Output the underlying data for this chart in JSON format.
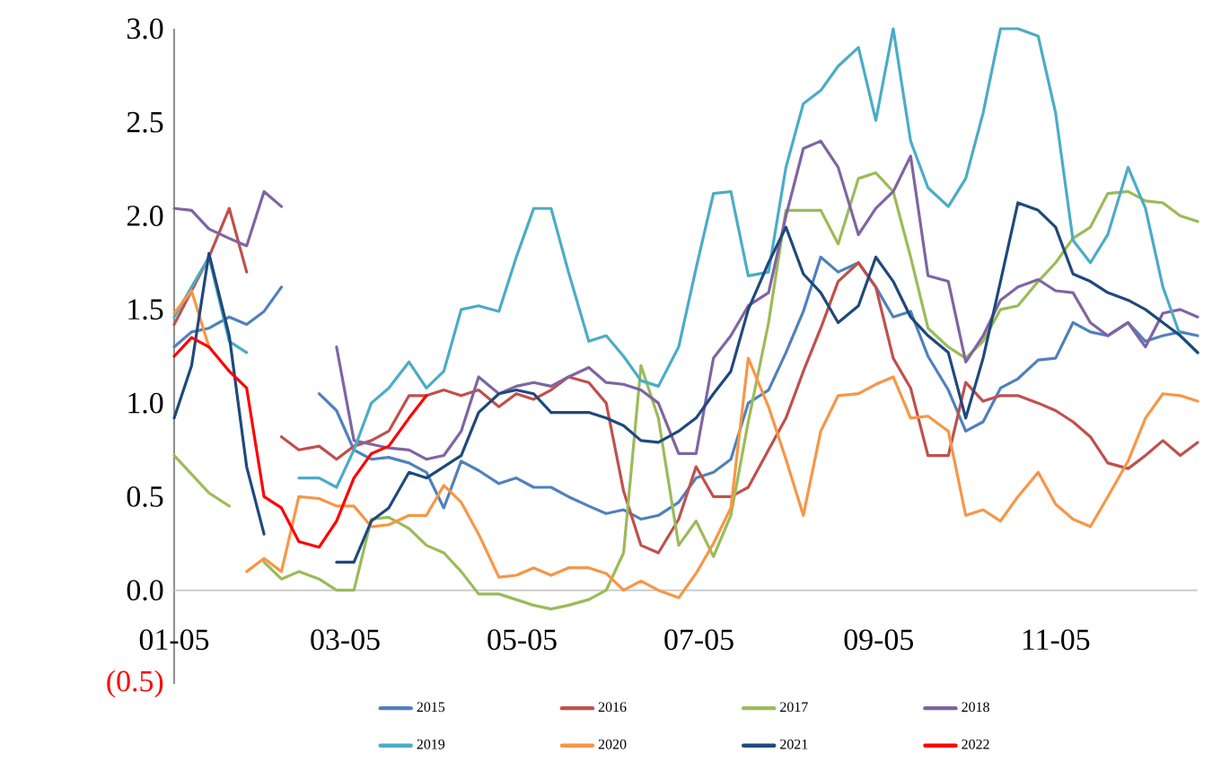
{
  "chart_data": {
    "type": "line",
    "x": [
      "--01-05",
      "--01-11",
      "--01-17",
      "--01-24",
      "--01-30",
      "--02-05",
      "--02-11",
      "--02-17",
      "--02-24",
      "--03-02",
      "--03-08",
      "--03-14",
      "--03-20",
      "--03-27",
      "--04-02",
      "--04-08",
      "--04-14",
      "--04-20",
      "--04-27",
      "--05-03",
      "--05-09",
      "--05-15",
      "--05-21",
      "--05-28",
      "--06-03",
      "--06-09",
      "--06-15",
      "--06-21",
      "--06-28",
      "--07-04",
      "--07-10",
      "--07-16",
      "--07-22",
      "--07-29",
      "--08-04",
      "--08-10",
      "--08-16",
      "--08-22",
      "--08-29",
      "--09-04",
      "--09-10",
      "--09-16",
      "--09-22",
      "--09-29",
      "--10-05",
      "--10-11",
      "--10-17",
      "--10-23",
      "--10-30",
      "--11-05",
      "--11-11",
      "--11-17",
      "--11-23",
      "--11-30",
      "--12-06",
      "--12-12",
      "--12-18",
      "--12-24"
    ],
    "series": [
      {
        "name": "2015",
        "color": "#4f81bd",
        "values": [
          1.3,
          1.38,
          1.4,
          1.46,
          1.42,
          1.49,
          1.62,
          null,
          1.05,
          0.96,
          0.75,
          0.7,
          0.71,
          0.68,
          0.63,
          0.44,
          0.69,
          0.64,
          0.57,
          0.6,
          0.55,
          0.55,
          0.5,
          0.45,
          0.41,
          0.43,
          0.38,
          0.4,
          0.47,
          0.6,
          0.63,
          0.7,
          1.0,
          1.07,
          1.27,
          1.49,
          1.78,
          1.7,
          1.75,
          1.62,
          1.46,
          1.49,
          1.25,
          1.07,
          0.85,
          0.9,
          1.08,
          1.13,
          1.23,
          1.24,
          1.43,
          1.38,
          1.36,
          1.43,
          1.33,
          1.36,
          1.38,
          1.36
        ]
      },
      {
        "name": "2016",
        "color": "#c0504d",
        "values": [
          1.42,
          1.6,
          1.78,
          2.04,
          1.7,
          null,
          0.82,
          0.75,
          0.77,
          0.7,
          0.77,
          0.8,
          0.85,
          1.04,
          1.04,
          1.07,
          1.04,
          1.07,
          0.98,
          1.05,
          1.02,
          1.07,
          1.14,
          1.11,
          1.0,
          0.53,
          0.24,
          0.2,
          0.38,
          0.66,
          0.5,
          0.5,
          0.55,
          0.75,
          0.92,
          1.17,
          1.4,
          1.65,
          1.75,
          1.62,
          1.24,
          1.08,
          0.72,
          0.72,
          1.11,
          1.01,
          1.04,
          1.04,
          1.0,
          0.96,
          0.9,
          0.82,
          0.68,
          0.65,
          0.72,
          0.8,
          0.72,
          0.79
        ]
      },
      {
        "name": "2017",
        "color": "#9bbb59",
        "values": [
          0.72,
          0.62,
          0.52,
          0.45,
          null,
          0.15,
          0.06,
          0.1,
          0.06,
          0.0,
          0.0,
          0.38,
          0.39,
          0.33,
          0.24,
          0.2,
          0.1,
          -0.02,
          -0.02,
          -0.05,
          -0.08,
          -0.1,
          -0.08,
          -0.05,
          0.0,
          0.2,
          1.2,
          0.92,
          0.24,
          0.37,
          0.18,
          0.4,
          0.9,
          1.43,
          2.03,
          2.03,
          2.03,
          1.85,
          2.2,
          2.23,
          2.13,
          1.78,
          1.4,
          1.3,
          1.24,
          1.33,
          1.5,
          1.52,
          1.65,
          1.75,
          1.88,
          1.94,
          2.12,
          2.13,
          2.08,
          2.07,
          2.0,
          1.97
        ]
      },
      {
        "name": "2018",
        "color": "#8064a2",
        "values": [
          2.04,
          2.03,
          1.93,
          1.88,
          1.84,
          2.13,
          2.05,
          null,
          null,
          1.3,
          0.8,
          0.78,
          0.76,
          0.75,
          0.7,
          0.72,
          0.85,
          1.14,
          1.05,
          1.09,
          1.11,
          1.09,
          1.14,
          1.19,
          1.11,
          1.1,
          1.07,
          1.0,
          0.73,
          0.73,
          1.24,
          1.36,
          1.52,
          1.59,
          2.0,
          2.36,
          2.4,
          2.26,
          1.9,
          2.04,
          2.13,
          2.32,
          1.68,
          1.65,
          1.22,
          1.36,
          1.55,
          1.62,
          1.66,
          1.6,
          1.59,
          1.43,
          1.36,
          1.43,
          1.3,
          1.48,
          1.5,
          1.46
        ]
      },
      {
        "name": "2019",
        "color": "#4bacc6",
        "values": [
          1.46,
          1.62,
          1.78,
          1.33,
          1.27,
          null,
          null,
          0.6,
          0.6,
          0.55,
          0.75,
          1.0,
          1.08,
          1.22,
          1.08,
          1.17,
          1.5,
          1.52,
          1.49,
          1.78,
          2.04,
          2.04,
          1.7,
          1.33,
          1.36,
          1.25,
          1.12,
          1.09,
          1.3,
          1.72,
          2.12,
          2.13,
          1.68,
          1.7,
          2.26,
          2.6,
          2.67,
          2.8,
          2.9,
          2.51,
          3.0,
          2.4,
          2.15,
          2.05,
          2.2,
          2.55,
          3.0,
          3.0,
          2.96,
          2.55,
          1.87,
          1.75,
          1.9,
          2.26,
          2.04,
          1.62,
          1.36,
          1.27
        ]
      },
      {
        "name": "2020",
        "color": "#f79646",
        "values": [
          1.48,
          1.6,
          1.3,
          null,
          0.1,
          0.17,
          0.1,
          0.5,
          0.49,
          0.45,
          0.45,
          0.34,
          0.35,
          0.4,
          0.4,
          0.56,
          0.47,
          0.3,
          0.07,
          0.08,
          0.12,
          0.08,
          0.12,
          0.12,
          0.09,
          0.0,
          0.05,
          0.0,
          -0.04,
          0.09,
          0.25,
          0.44,
          1.24,
          0.98,
          0.7,
          0.4,
          0.85,
          1.04,
          1.05,
          1.1,
          1.14,
          0.92,
          0.93,
          0.85,
          0.4,
          0.43,
          0.37,
          0.5,
          0.63,
          0.46,
          0.38,
          0.34,
          0.5,
          0.69,
          0.92,
          1.05,
          1.04,
          1.01
        ]
      },
      {
        "name": "2021",
        "color": "#1f497d",
        "values": [
          0.92,
          1.2,
          1.8,
          1.36,
          0.66,
          0.3,
          null,
          null,
          null,
          0.15,
          0.15,
          0.37,
          0.44,
          0.63,
          0.6,
          0.66,
          0.72,
          0.95,
          1.05,
          1.07,
          1.05,
          0.95,
          0.95,
          0.95,
          0.92,
          0.88,
          0.8,
          0.79,
          0.85,
          0.92,
          1.05,
          1.17,
          1.5,
          1.75,
          1.94,
          1.69,
          1.59,
          1.43,
          1.52,
          1.78,
          1.65,
          1.46,
          1.36,
          1.27,
          0.92,
          1.24,
          1.65,
          2.07,
          2.03,
          1.94,
          1.69,
          1.65,
          1.59,
          1.55,
          1.5,
          1.43,
          1.36,
          1.27
        ]
      },
      {
        "name": "2022",
        "color": "#ff0000",
        "values": [
          1.25,
          1.35,
          1.3,
          1.17,
          1.08,
          0.5,
          0.44,
          0.26,
          0.23,
          0.37,
          0.6,
          0.73,
          0.77,
          0.92,
          1.04,
          null,
          null,
          null,
          null,
          null,
          null,
          null,
          null,
          null,
          null,
          null,
          null,
          null,
          null,
          null,
          null,
          null,
          null,
          null,
          null,
          null,
          null,
          null,
          null,
          null,
          null,
          null,
          null,
          null,
          null,
          null,
          null,
          null,
          null,
          null,
          null,
          null,
          null,
          null,
          null,
          null,
          null,
          null
        ]
      }
    ],
    "xlim": [
      "--01-05",
      "--12-24"
    ],
    "xticks": [
      {
        "value": "--01-05",
        "label": "01-05"
      },
      {
        "value": "--03-05",
        "label": "03-05"
      },
      {
        "value": "--05-05",
        "label": "05-05"
      },
      {
        "value": "--07-05",
        "label": "07-05"
      },
      {
        "value": "--09-05",
        "label": "09-05"
      },
      {
        "value": "--11-05",
        "label": "11-05"
      }
    ],
    "ylim": [
      -0.5,
      3.0
    ],
    "yticks": [
      {
        "value": -0.5,
        "label": "(0.5)"
      },
      {
        "value": 0,
        "label": "0.0"
      },
      {
        "value": 0.5,
        "label": "0.5"
      },
      {
        "value": 1,
        "label": "1.0"
      },
      {
        "value": 1.5,
        "label": "1.5"
      },
      {
        "value": 2,
        "label": "2.0"
      },
      {
        "value": 2.5,
        "label": "2.5"
      },
      {
        "value": 3,
        "label": "3.0"
      }
    ],
    "legend": "bottom"
  }
}
